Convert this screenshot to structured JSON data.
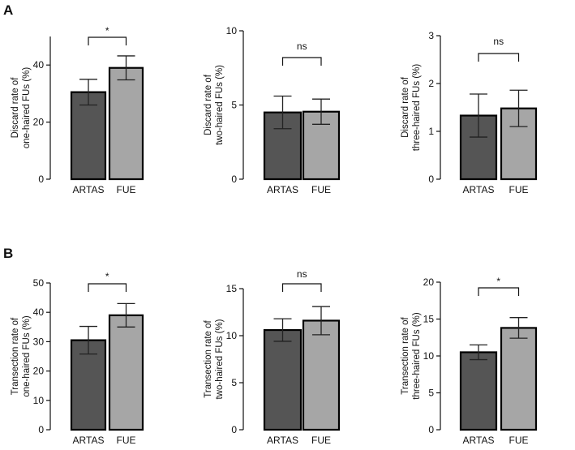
{
  "panels": [
    {
      "letter": "A"
    },
    {
      "letter": "B"
    }
  ],
  "chart_data": [
    {
      "type": "bar",
      "panel": "A",
      "title": "",
      "categories": [
        "ARTAS",
        "FUE"
      ],
      "values": [
        30.5,
        39.0
      ],
      "error": [
        4.5,
        4.2
      ],
      "ylabel": [
        "Discard rate of",
        "one-haired FUs (%)"
      ],
      "ylim": [
        0,
        50
      ],
      "yticks": [
        "0",
        "20",
        "40"
      ],
      "ytick_values": [
        0,
        20,
        40
      ],
      "significance": "*",
      "colors": [
        "#555555",
        "#a6a6a6"
      ]
    },
    {
      "type": "bar",
      "panel": "A",
      "title": "",
      "categories": [
        "ARTAS",
        "FUE"
      ],
      "values": [
        4.5,
        4.55
      ],
      "error": [
        1.1,
        0.85
      ],
      "ylabel": [
        "Discard rate of",
        "two-haired FUs (%)"
      ],
      "ylim": [
        0,
        10
      ],
      "yticks": [
        "0",
        "5",
        "10"
      ],
      "ytick_values": [
        0,
        5,
        10
      ],
      "significance": "ns",
      "colors": [
        "#555555",
        "#a6a6a6"
      ]
    },
    {
      "type": "bar",
      "panel": "A",
      "title": "",
      "categories": [
        "ARTAS",
        "FUE"
      ],
      "values": [
        1.33,
        1.48
      ],
      "error": [
        0.45,
        0.38
      ],
      "ylabel": [
        "Discard rate of",
        "three-haired FUs (%)"
      ],
      "ylim": [
        0,
        3
      ],
      "yticks": [
        "0",
        "1",
        "2",
        "3"
      ],
      "ytick_values": [
        0,
        1,
        2,
        3
      ],
      "significance": "ns",
      "colors": [
        "#555555",
        "#a6a6a6"
      ]
    },
    {
      "type": "bar",
      "panel": "B",
      "title": "",
      "categories": [
        "ARTAS",
        "FUE"
      ],
      "values": [
        30.5,
        39.0
      ],
      "error": [
        4.7,
        4.0
      ],
      "ylabel": [
        "Transection rate of",
        "one-haired FUs (%)"
      ],
      "ylim": [
        0,
        50
      ],
      "yticks": [
        "0",
        "10",
        "20",
        "30",
        "40",
        "50"
      ],
      "ytick_values": [
        0,
        10,
        20,
        30,
        40,
        50
      ],
      "significance": "*",
      "colors": [
        "#555555",
        "#a6a6a6"
      ]
    },
    {
      "type": "bar",
      "panel": "B",
      "title": "",
      "categories": [
        "ARTAS",
        "FUE"
      ],
      "values": [
        10.6,
        11.6
      ],
      "error": [
        1.2,
        1.5
      ],
      "ylabel": [
        "Transection rate of",
        "two-haired FUs (%)"
      ],
      "ylim": [
        0,
        15
      ],
      "yticks": [
        "0",
        "5",
        "10",
        "15"
      ],
      "ytick_values": [
        0,
        5,
        10,
        15
      ],
      "significance": "ns",
      "colors": [
        "#555555",
        "#a6a6a6"
      ]
    },
    {
      "type": "bar",
      "panel": "B",
      "title": "",
      "categories": [
        "ARTAS",
        "FUE"
      ],
      "values": [
        10.5,
        13.8
      ],
      "error": [
        1.0,
        1.4
      ],
      "ylabel": [
        "Transection rate of",
        "three-haired FUs (%)"
      ],
      "ylim": [
        0,
        20
      ],
      "yticks": [
        "0",
        "5",
        "10",
        "15",
        "20"
      ],
      "ytick_values": [
        0,
        5,
        10,
        15,
        20
      ],
      "significance": "*",
      "colors": [
        "#555555",
        "#a6a6a6"
      ]
    }
  ]
}
